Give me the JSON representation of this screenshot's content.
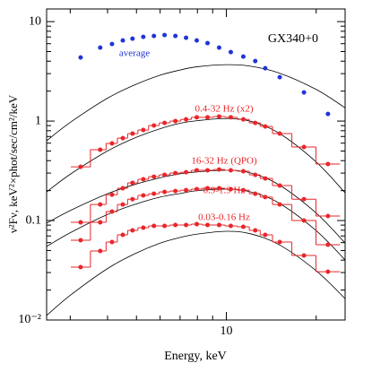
{
  "chart_data": {
    "type": "scatter",
    "title": "GX340+0",
    "xlabel": "Energy, keV",
    "ylabel": "ν²Fν, keV²×phot/sec/cm²/keV",
    "xscale": "log",
    "yscale": "log",
    "xlim": [
      2.5,
      25
    ],
    "ylim": [
      0.01,
      13.4
    ],
    "xticks": [
      10
    ],
    "xminor": [
      3,
      4,
      5,
      6,
      7,
      8,
      9,
      20
    ],
    "yticks": [
      {
        "value": 0.01,
        "label": "10⁻²"
      },
      0.1,
      1,
      10
    ],
    "yminor": [
      0.02,
      0.03,
      0.04,
      0.05,
      0.06,
      0.07,
      0.08,
      0.09,
      0.2,
      0.3,
      0.4,
      0.5,
      0.6,
      0.7,
      0.8,
      0.9,
      2,
      3,
      4,
      5,
      6,
      7,
      8,
      9
    ],
    "x": [
      3.25,
      3.78,
      4.14,
      4.5,
      4.85,
      5.27,
      5.72,
      6.21,
      6.75,
      7.33,
      7.96,
      8.65,
      9.46,
      10.35,
      11.4,
      12.5,
      13.5,
      15.1,
      18.2,
      21.9
    ],
    "series": [
      {
        "name": "average",
        "color": "#1f35d8",
        "style": "points",
        "values": [
          4.36,
          5.48,
          5.95,
          6.47,
          6.74,
          7.03,
          7.17,
          7.32,
          7.17,
          6.88,
          6.47,
          6.08,
          5.48,
          4.94,
          4.45,
          4.01,
          3.4,
          2.76,
          1.94,
          1.18
        ]
      },
      {
        "name": "0.4-32 Hz (x2)",
        "color": "#e8262a",
        "style": "step",
        "values": [
          0.347,
          0.515,
          0.596,
          0.674,
          0.748,
          0.813,
          0.902,
          0.959,
          1.0,
          1.04,
          1.09,
          1.09,
          1.11,
          1.09,
          1.04,
          0.959,
          0.883,
          0.748,
          0.548,
          0.37
        ]
      },
      {
        "name": "16-32 Hz (QPO)",
        "color": "#e8262a",
        "style": "step",
        "values": [
          0.0959,
          0.145,
          0.182,
          0.211,
          0.239,
          0.26,
          0.276,
          0.288,
          0.3,
          0.306,
          0.32,
          0.32,
          0.326,
          0.32,
          0.313,
          0.288,
          0.265,
          0.225,
          0.164,
          0.111
        ]
      },
      {
        "name": "0.9-1.9 Hz",
        "color": "#e8262a",
        "style": "step",
        "values": [
          0.0634,
          0.0959,
          0.123,
          0.145,
          0.164,
          0.179,
          0.186,
          0.194,
          0.198,
          0.202,
          0.207,
          0.211,
          0.211,
          0.207,
          0.202,
          0.186,
          0.172,
          0.145,
          0.1,
          0.0571
        ]
      },
      {
        "name": "0.03-0.16 Hz",
        "color": "#e8262a",
        "style": "step",
        "values": [
          0.034,
          0.0494,
          0.0608,
          0.0718,
          0.0796,
          0.0847,
          0.0883,
          0.0883,
          0.0902,
          0.0902,
          0.092,
          0.0902,
          0.0902,
          0.0883,
          0.0865,
          0.0796,
          0.0718,
          0.0608,
          0.0445,
          0.0306
        ]
      }
    ],
    "model_x": [
      2.5,
      3,
      4,
      5,
      6,
      7,
      8,
      10,
      12,
      15,
      20,
      25
    ],
    "models": [
      {
        "color": "#000000",
        "values": [
          0.634,
          0.969,
          1.7,
          2.35,
          2.89,
          3.26,
          3.52,
          3.69,
          3.57,
          3.05,
          2.08,
          1.36
        ]
      },
      {
        "color": "#000000",
        "values": [
          0.194,
          0.292,
          0.501,
          0.687,
          0.838,
          0.951,
          1.01,
          1.06,
          1.0,
          0.757,
          0.388,
          0.19
        ]
      },
      {
        "color": "#000000",
        "values": [
          0.094,
          0.126,
          0.186,
          0.233,
          0.269,
          0.295,
          0.309,
          0.32,
          0.302,
          0.229,
          0.119,
          0.0595
        ]
      },
      {
        "color": "#000000",
        "values": [
          0.0548,
          0.0754,
          0.115,
          0.147,
          0.172,
          0.187,
          0.2,
          0.207,
          0.195,
          0.15,
          0.0791,
          0.0402
        ]
      },
      {
        "color": "#000000",
        "values": [
          0.0111,
          0.0177,
          0.0329,
          0.0472,
          0.0593,
          0.0676,
          0.0731,
          0.078,
          0.0738,
          0.0574,
          0.0313,
          0.0164
        ]
      }
    ]
  }
}
